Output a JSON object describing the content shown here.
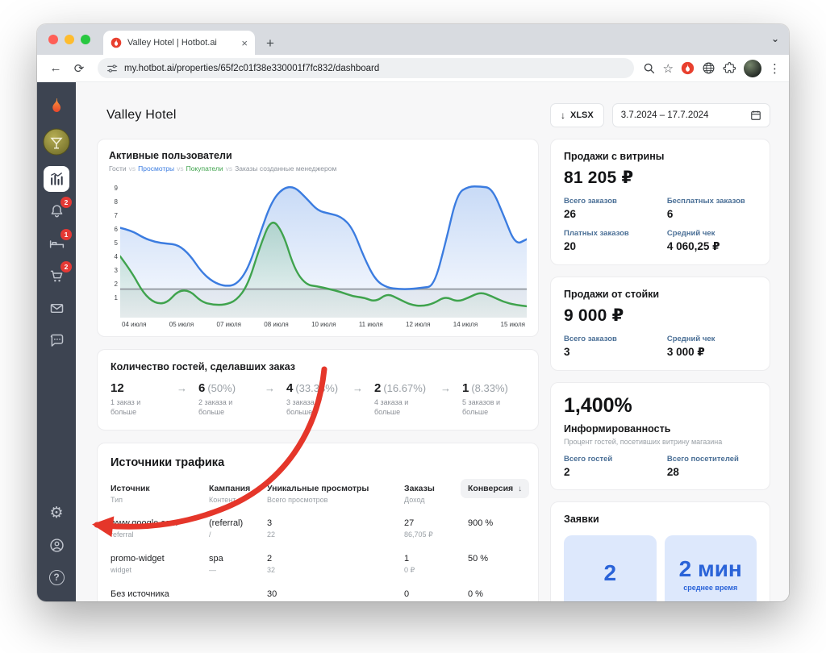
{
  "icons": {
    "close": "×",
    "new_tab": "+",
    "chevron_down": "⌄",
    "back": "←",
    "reload": "⟳",
    "star": "☆",
    "menu_dots": "⋮",
    "download": "↓",
    "sort_desc": "↓",
    "step_arrow": "→",
    "gear": "⚙",
    "question": "?"
  },
  "browser": {
    "tab_title": "Valley Hotel | Hotbot.ai",
    "url": "my.hotbot.ai/properties/65f2c01f38e330001f7fc832/dashboard"
  },
  "sidebar": {
    "badge_notifications": "2",
    "badge_bookings": "1",
    "badge_cart": "2"
  },
  "header": {
    "title": "Valley Hotel",
    "export_label": "XLSX",
    "date_range": "3.7.2024 – 17.7.2024"
  },
  "active_users_card": {
    "title": "Активные пользователи",
    "legend": {
      "guests": "Гости",
      "views": "Просмотры",
      "buyers": "Покупатели",
      "manager_orders": "Заказы созданные менеджером",
      "separator": "vs"
    }
  },
  "chart_data": {
    "type": "line",
    "title": "Активные пользователи",
    "categories": [
      "04 июля",
      "05 июля",
      "07 июля",
      "08 июля",
      "10 июля",
      "11 июля",
      "12 июля",
      "14 июля",
      "15 июля"
    ],
    "y_ticks": [
      "9",
      "8",
      "7",
      "6",
      "5",
      "4",
      "3",
      "2",
      "1"
    ],
    "ylim": [
      0,
      9.5
    ],
    "grid": false,
    "legend_position": "top",
    "series": [
      {
        "name": "Гости",
        "color": "#9aa0a6",
        "values": [
          2,
          2
        ]
      },
      {
        "name": "Просмотры",
        "color": "#3b7ce0",
        "values": [
          6.3,
          6.1,
          5.6,
          5.3,
          5.2,
          5.1,
          4.4,
          3.2,
          2.5,
          2.2,
          2.3,
          3.4,
          5.8,
          8.1,
          9.1,
          9.2,
          8.4,
          7.5,
          7.3,
          7.1,
          6.3,
          4.2,
          2.6,
          2.1,
          2.0,
          2.0,
          2.1,
          2.2,
          5.2,
          8.7,
          9.2,
          9.2,
          9.1,
          7.2,
          5.1,
          5.5
        ]
      },
      {
        "name": "Покупатели",
        "color": "#3fa34d",
        "values": [
          4.3,
          3.2,
          1.7,
          1.0,
          1.0,
          1.9,
          1.9,
          1.1,
          0.9,
          0.9,
          1.2,
          2.3,
          4.9,
          7.0,
          6.0,
          3.4,
          2.3,
          2.2,
          2.0,
          1.8,
          1.5,
          1.4,
          1.1,
          1.7,
          1.3,
          0.9,
          0.8,
          1.0,
          1.5,
          1.1,
          1.4,
          1.8,
          1.5,
          1.1,
          0.9,
          0.8
        ]
      }
    ]
  },
  "funnel_card": {
    "title": "Количество гостей, сделавших заказ",
    "steps": [
      {
        "value": "12",
        "percent": "",
        "caption": "1 заказ и больше"
      },
      {
        "value": "6",
        "percent": "(50%)",
        "caption": "2 заказа и больше"
      },
      {
        "value": "4",
        "percent": "(33.33%)",
        "caption": "3 заказа и больше"
      },
      {
        "value": "2",
        "percent": "(16.67%)",
        "caption": "4 заказа и больше"
      },
      {
        "value": "1",
        "percent": "(8.33%)",
        "caption": "5 заказов и больше"
      }
    ]
  },
  "traffic_card": {
    "title": "Источники трафика",
    "columns": {
      "source_main": "Источник",
      "source_sub": "Тип",
      "campaign_main": "Кампания",
      "campaign_sub": "Контент",
      "views_main": "Уникальные просмотры",
      "views_sub": "Всего просмотров",
      "orders_main": "Заказы",
      "orders_sub": "Доход",
      "conversion_main": "Конверсия"
    },
    "rows": [
      {
        "source": "www.google.com",
        "source_sub": "referral",
        "campaign": "(referral)",
        "campaign_sub": "/",
        "views": "3",
        "views_sub": "22",
        "orders": "27",
        "orders_sub": "86,705 ₽",
        "conversion": "900 %"
      },
      {
        "source": "promo-widget",
        "source_sub": "widget",
        "campaign": "spa",
        "campaign_sub": "—",
        "views": "2",
        "views_sub": "32",
        "orders": "1",
        "orders_sub": "0 ₽",
        "conversion": "50 %"
      },
      {
        "source": "Без источника",
        "source_sub": "",
        "campaign": "",
        "campaign_sub": "",
        "views": "30",
        "views_sub": "",
        "orders": "0",
        "orders_sub": "",
        "conversion": "0 %"
      }
    ]
  },
  "showcase_sales_card": {
    "title": "Продажи с витрины",
    "total": "81 205 ₽",
    "stats": [
      {
        "label": "Всего заказов",
        "value": "26"
      },
      {
        "label": "Бесплатных заказов",
        "value": "6"
      },
      {
        "label": "Платных заказов",
        "value": "20"
      },
      {
        "label": "Средний чек",
        "value": "4 060,25 ₽"
      }
    ]
  },
  "desk_sales_card": {
    "title": "Продажи от стойки",
    "total": "9 000 ₽",
    "stats": [
      {
        "label": "Всего заказов",
        "value": "3"
      },
      {
        "label": "Средний чек",
        "value": "3 000 ₽"
      }
    ]
  },
  "awareness_card": {
    "percent": "1,400%",
    "title": "Информированность",
    "subtitle": "Процент гостей, посетивших витрину магазина",
    "stats": [
      {
        "label": "Всего гостей",
        "value": "2"
      },
      {
        "label": "Всего посетителей",
        "value": "28"
      }
    ]
  },
  "requests_card": {
    "title": "Заявки",
    "tiles": [
      {
        "value": "2",
        "caption": ""
      },
      {
        "value": "2 мин",
        "caption": "среднее время"
      }
    ]
  }
}
